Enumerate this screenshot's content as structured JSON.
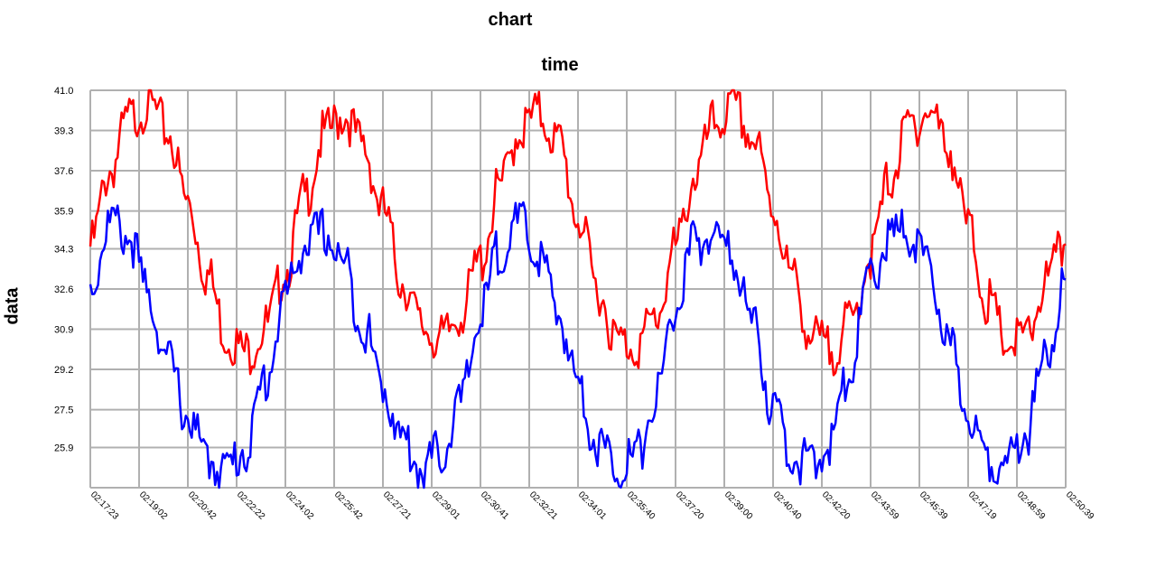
{
  "chart_data": {
    "type": "line",
    "title": "chart",
    "xlabel": "time",
    "ylabel": "data",
    "ylim": [
      24.2,
      41.0
    ],
    "yticks": [
      "41.0",
      "39.3",
      "37.6",
      "35.9",
      "34.3",
      "32.6",
      "30.9",
      "29.2",
      "27.5",
      "25.9"
    ],
    "xticks": [
      "02:17:23",
      "02:19:02",
      "02:20:42",
      "02:22:22",
      "02:24:02",
      "02:25:42",
      "02:27:21",
      "02:29:01",
      "02:30:41",
      "02:32:21",
      "02:34:01",
      "02:35:40",
      "02:37:20",
      "02:39:00",
      "02:40:40",
      "02:42:20",
      "02:43:59",
      "02:45:39",
      "02:47:19",
      "02:48:59",
      "02:50:39"
    ],
    "grid": true,
    "legend": "none",
    "series": [
      {
        "color": "#ff0000",
        "values": [
          34.4,
          37.6,
          39.8,
          40.4,
          39.2,
          36.2,
          33.2,
          30.6,
          29.9,
          31.0,
          33.4,
          36.5,
          39.1,
          40.0,
          38.6,
          35.9,
          32.9,
          31.0,
          30.4,
          31.6,
          33.8,
          36.9,
          39.3,
          40.0,
          38.8,
          35.6,
          32.6,
          30.4,
          30.2,
          31.4,
          34.3,
          37.4,
          39.6,
          40.2,
          38.9,
          36.0,
          33.0,
          30.5,
          30.0,
          31.2,
          34.0,
          37.3,
          39.5,
          40.1,
          38.6,
          35.2,
          32.0,
          30.3,
          30.5,
          32.9,
          34.5
        ]
      },
      {
        "color": "#0000ff",
        "values": [
          32.6,
          35.4,
          34.8,
          32.2,
          29.5,
          27.2,
          25.4,
          25.0,
          25.9,
          28.8,
          32.3,
          34.5,
          35.0,
          33.6,
          31.0,
          28.5,
          26.2,
          25.0,
          25.7,
          27.8,
          31.5,
          34.3,
          35.3,
          34.0,
          31.5,
          28.6,
          26.0,
          25.2,
          25.5,
          28.0,
          31.8,
          34.5,
          34.9,
          33.8,
          31.0,
          27.5,
          25.6,
          25.0,
          26.2,
          29.5,
          33.1,
          34.7,
          35.0,
          33.3,
          30.2,
          27.4,
          25.5,
          25.2,
          26.6,
          29.8,
          33.0
        ]
      }
    ]
  }
}
